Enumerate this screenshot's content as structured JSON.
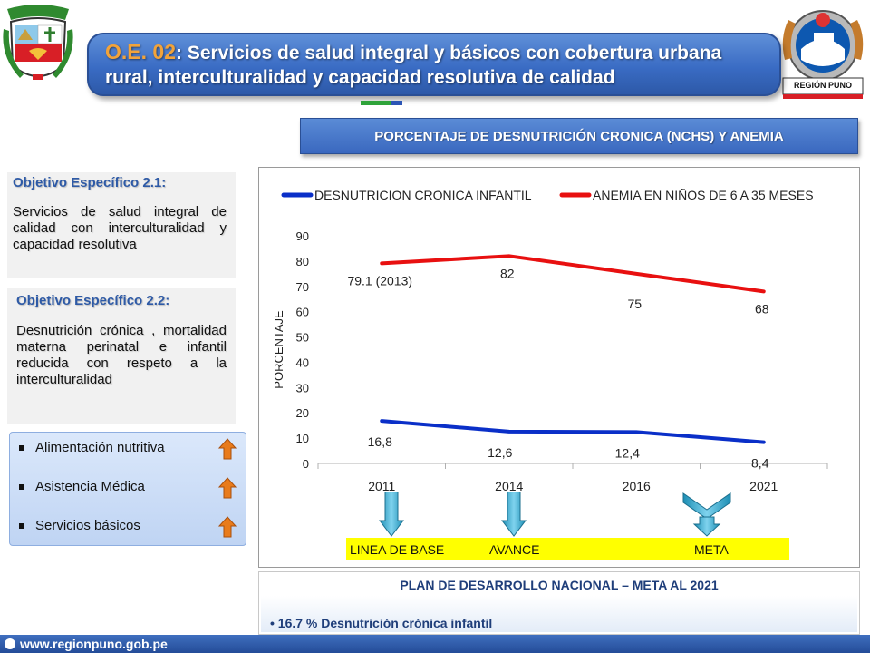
{
  "header": {
    "code": "O.E. 02",
    "separator": ":",
    "title_text": " Servicios de salud integral  y básicos  con cobertura urbana rural, interculturalidad y capacidad resolutiva de calidad",
    "region_logo_label": "REGIÓN PUNO"
  },
  "chart_title": "PORCENTAJE DE DESNUTRICIÓN CRONICA (NCHS) Y ANEMIA",
  "objectives": [
    {
      "heading": "Objetivo Específico 2.1",
      "heading_suffix": ":",
      "text": "Servicios de salud integral de calidad con interculturalidad y capacidad resolutiva"
    },
    {
      "heading": "Objetivo Específico 2.2:",
      "text": "Desnutrición crónica , mortalidad materna perinatal e infantil reducida con respeto a la interculturalidad"
    }
  ],
  "list": {
    "items": [
      "Alimentación nutritiva",
      "Asistencia Médica",
      "Servicios básicos"
    ]
  },
  "chart_data": {
    "type": "line",
    "categories": [
      "2011",
      "2014",
      "2016",
      "2021"
    ],
    "ylabel": "PORCENTAJE",
    "ylim": [
      0,
      90
    ],
    "yticks": [
      "0",
      "10",
      "20",
      "30",
      "40",
      "50",
      "60",
      "70",
      "80",
      "90"
    ],
    "legend_position": "top",
    "series": [
      {
        "name": "DESNUTRICION CRONICA INFANTIL",
        "color": "#0a2fc8",
        "values": [
          16.8,
          12.6,
          12.4,
          8.4
        ],
        "labels": [
          "16,8",
          "12,6",
          "12,4",
          "8,4"
        ]
      },
      {
        "name": "ANEMIA EN NIÑOS DE 6 A 35 MESES",
        "color": "#e81010",
        "values": [
          79.1,
          82,
          75,
          68
        ],
        "labels": [
          "79.1  (2013)",
          "82",
          "75",
          "68"
        ]
      }
    ]
  },
  "markers": [
    "LINEA DE BASE",
    "AVANCE",
    "META"
  ],
  "plan": {
    "heading": "PLAN DE DESARROLLO NACIONAL – META AL 2021",
    "item": "16.7 % Desnutrición crónica infantil"
  },
  "footer": {
    "url": "www.regionpuno.gob.pe"
  }
}
